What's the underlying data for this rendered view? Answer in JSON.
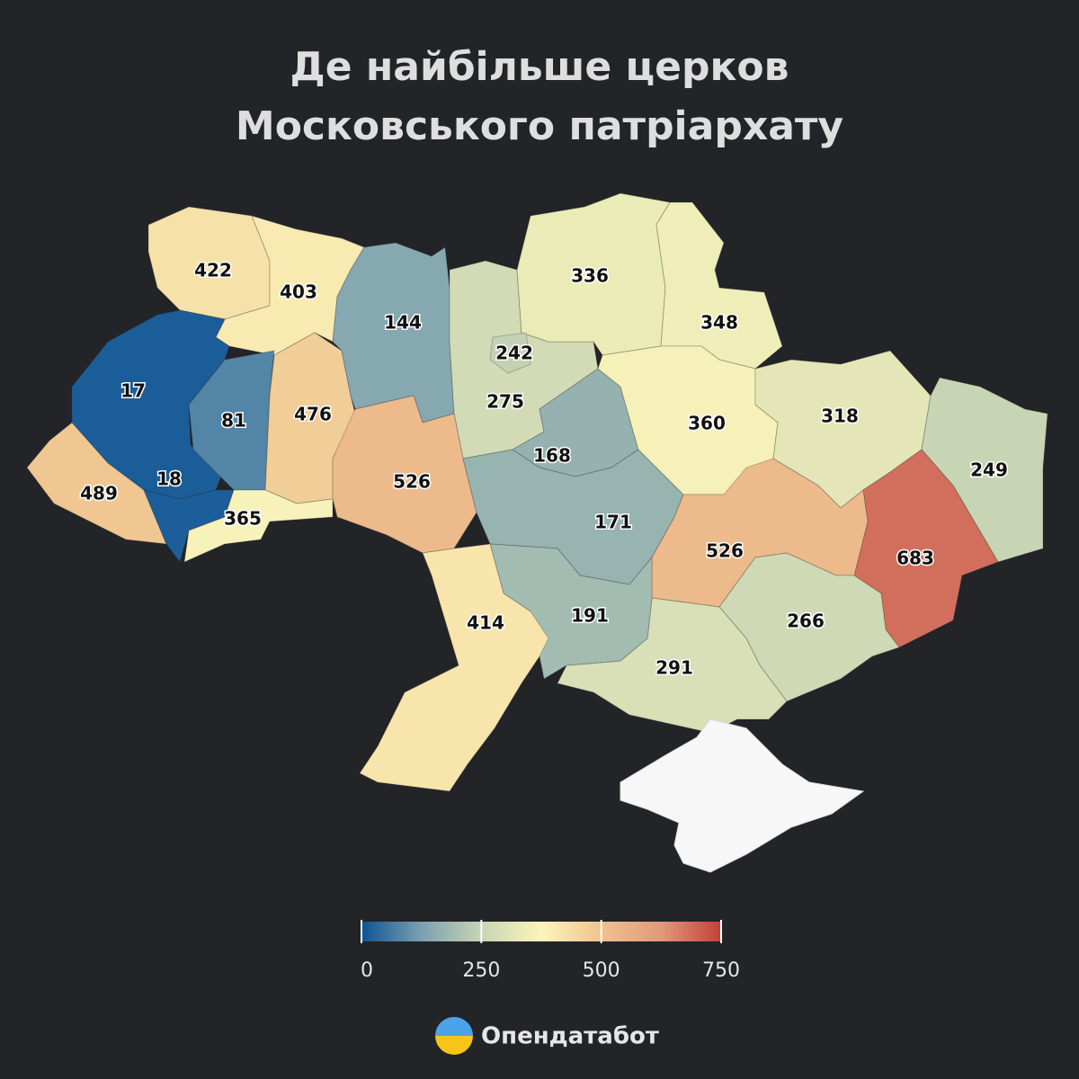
{
  "chart_data": {
    "type": "choropleth",
    "title": "Де найбільше церков Московського патріархату",
    "values": [
      422,
      403,
      17,
      81,
      476,
      489,
      18,
      365,
      144,
      242,
      275,
      526,
      168,
      171,
      336,
      348,
      360,
      318,
      249,
      683,
      526,
      266,
      291,
      191,
      414
    ],
    "colors": [
      "#0c5395",
      "#7aa0b0",
      "#c8d5b4",
      "#fbf5b9",
      "#efc38f",
      "#e1987a",
      "#c1403a"
    ],
    "clim": [
      0,
      750
    ],
    "colorbar_ticks": [
      0,
      250,
      500,
      750
    ]
  },
  "logo": "Опендатабот"
}
